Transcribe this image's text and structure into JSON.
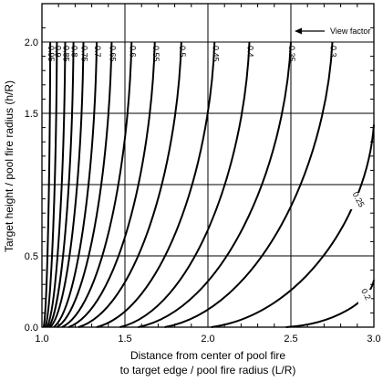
{
  "chart_data": {
    "type": "line",
    "xlabel_line1": "Distance from center of pool fire",
    "xlabel_line2": "to target edge / pool fire radius (L/R)",
    "ylabel": "Target height / pool fire radius (h/R)",
    "xlim": [
      1.0,
      3.0
    ],
    "ylim": [
      0.0,
      2.25
    ],
    "x_ticks": [
      1.0,
      1.5,
      2.0,
      2.5,
      3.0
    ],
    "x_tick_labels": [
      "1.0",
      "1.5",
      "2.0",
      "2.5",
      "3.0"
    ],
    "y_ticks": [
      0.0,
      0.5,
      1.0,
      1.5,
      2.0
    ],
    "y_tick_labels": [
      "0.0",
      "0.5",
      "1.5",
      "2.0"
    ],
    "y_tick_label_values": [
      0.0,
      0.5,
      1.5,
      2.0
    ],
    "grid": true,
    "annotation": "View factor",
    "series": [
      {
        "name": "0.95",
        "x0": 1.01,
        "x1": 1.05
      },
      {
        "name": "0.9",
        "x0": 1.02,
        "x1": 1.09
      },
      {
        "name": "0.85",
        "x0": 1.03,
        "x1": 1.14
      },
      {
        "name": "0.8",
        "x0": 1.04,
        "x1": 1.19
      },
      {
        "name": "0.75",
        "x0": 1.05,
        "x1": 1.25
      },
      {
        "name": "0.7",
        "x0": 1.07,
        "x1": 1.33
      },
      {
        "name": "0.65",
        "x0": 1.09,
        "x1": 1.42
      },
      {
        "name": "0.6",
        "x0": 1.12,
        "x1": 1.54
      },
      {
        "name": "0.55",
        "x0": 1.16,
        "x1": 1.68
      },
      {
        "name": "0.5",
        "x0": 1.22,
        "x1": 1.84
      },
      {
        "name": "0.45",
        "x0": 1.33,
        "x1": 2.04
      },
      {
        "name": "0.4",
        "x0": 1.47,
        "x1": 2.25
      },
      {
        "name": "0.35",
        "x0": 1.58,
        "x1": 2.5
      },
      {
        "name": "0.3",
        "x0": 1.74,
        "x1": 2.75
      },
      {
        "name": "0.25",
        "x0": 2.02,
        "x1": 3.0,
        "y_end": 1.42
      },
      {
        "name": "0.2",
        "x0": 2.47,
        "x1": 3.0,
        "y_end": 0.33
      }
    ]
  }
}
